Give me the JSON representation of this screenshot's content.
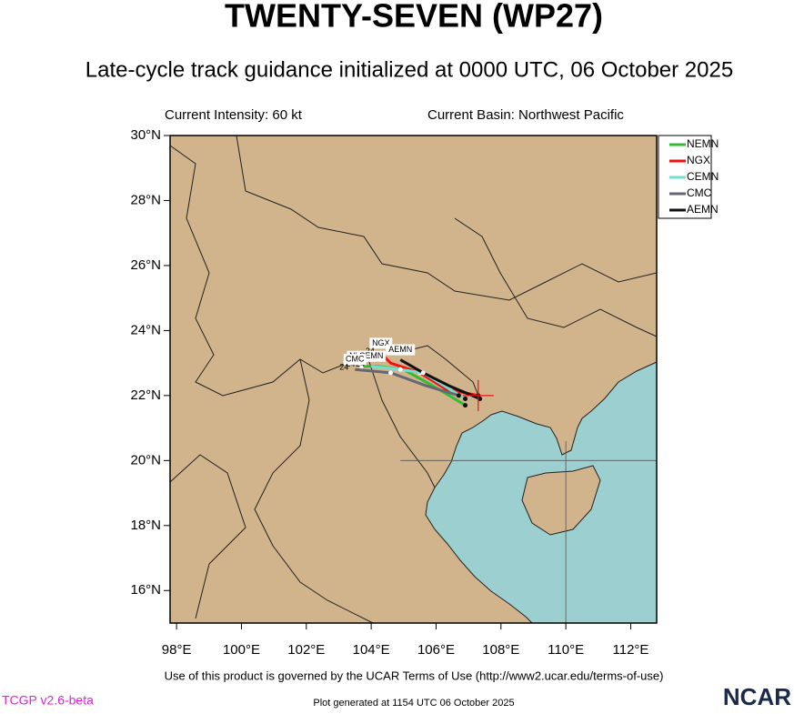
{
  "chart_data": {
    "type": "track",
    "title": "TWENTY-SEVEN (WP27)",
    "subtitle": "Late-cycle track guidance initialized at 0000 UTC, 06 October 2025",
    "intensity_note": "Current Intensity: 60 kt",
    "basin_note": "Current Basin: Northwest Pacific",
    "terms": "Use of this product is governed by the UCAR Terms of Use (http://www2.ucar.edu/terms-of-use)",
    "version": "TCGP v2.6-beta",
    "generated": "Plot generated at 1154 UTC   06 October 2025",
    "logo": "NCAR",
    "xlim": [
      97.8,
      112.8
    ],
    "ylim": [
      15,
      30
    ],
    "xticks": [
      {
        "value": 98,
        "label": "98°E"
      },
      {
        "value": 100,
        "label": "100°E"
      },
      {
        "value": 102,
        "label": "102°E"
      },
      {
        "value": 104,
        "label": "104°E"
      },
      {
        "value": 106,
        "label": "106°E"
      },
      {
        "value": 108,
        "label": "108°E"
      },
      {
        "value": 110,
        "label": "110°E"
      },
      {
        "value": 112,
        "label": "112°E"
      }
    ],
    "yticks": [
      {
        "value": 16,
        "label": "16°N"
      },
      {
        "value": 18,
        "label": "18°N"
      },
      {
        "value": 20,
        "label": "20°N"
      },
      {
        "value": 22,
        "label": "22°N"
      },
      {
        "value": 24,
        "label": "24°N"
      },
      {
        "value": 26,
        "label": "26°N"
      },
      {
        "value": 28,
        "label": "28°N"
      },
      {
        "value": 30,
        "label": "30°N"
      }
    ],
    "current_position": {
      "lon": 107.3,
      "lat": 22.0
    },
    "series": [
      {
        "name": "NEMN",
        "color": "#33bb33",
        "hour_label": 24,
        "lon": [
          106.9,
          105.9,
          105.0,
          104.2,
          103.7
        ],
        "lat": [
          21.7,
          22.3,
          22.8,
          22.9,
          22.9
        ]
      },
      {
        "name": "NGX",
        "color": "#ee1111",
        "hour_label": 24,
        "lon": [
          107.3,
          106.3,
          105.5,
          104.6,
          104.3
        ],
        "lat": [
          22.0,
          22.2,
          22.7,
          23.0,
          23.3
        ]
      },
      {
        "name": "CEMN",
        "color": "#77ddcc",
        "hour_label": 24,
        "lon": [
          106.9,
          105.6,
          104.9,
          104.0
        ],
        "lat": [
          21.9,
          22.7,
          22.8,
          22.9
        ]
      },
      {
        "name": "CMC",
        "color": "#666677",
        "hour_label": 24,
        "lon": [
          106.7,
          105.7,
          104.6,
          103.5
        ],
        "lat": [
          22.0,
          22.3,
          22.7,
          22.8
        ]
      },
      {
        "name": "AEMN",
        "color": "#111111",
        "lon": [
          107.35,
          106.4,
          105.6,
          104.9
        ],
        "lat": [
          21.9,
          22.3,
          22.7,
          23.1
        ]
      }
    ]
  }
}
